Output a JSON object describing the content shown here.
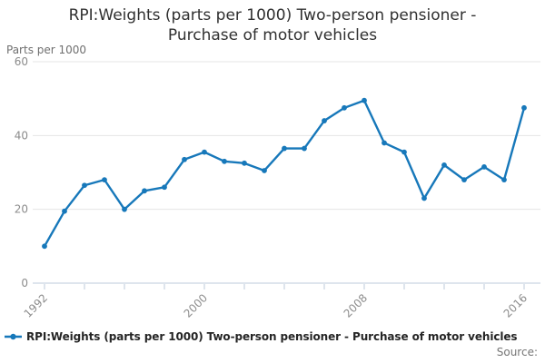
{
  "title": {
    "line1": "RPI:Weights (parts per 1000) Two-person pensioner -",
    "line2": "Purchase of motor vehicles"
  },
  "y_axis_unit_label": "Parts per 1000",
  "legend": {
    "label": "RPI:Weights (parts per 1000) Two-person pensioner - Purchase of motor vehicles"
  },
  "source_label": "Source:",
  "colors": {
    "line": "#1778ba",
    "grid": "#e4e4e4",
    "axis": "#bccbdb",
    "tick_label": "#8c8c8c",
    "title_text": "#303030",
    "legend_text": "#252525",
    "source_text": "#757575",
    "background": "#ffffff"
  },
  "chart_data": {
    "type": "line",
    "title": "RPI:Weights (parts per 1000) Two-person pensioner - Purchase of motor vehicles",
    "ylabel": "Parts per 1000",
    "xlabel": "",
    "ylim": [
      0,
      60
    ],
    "yticks": [
      0,
      20,
      40,
      60
    ],
    "xtick_step": 2,
    "xtick_labels_shown": [
      1992,
      2000,
      2008,
      2016
    ],
    "grid": true,
    "marker": "circle",
    "legend_position": "bottom-left",
    "x": [
      1992,
      1993,
      1994,
      1995,
      1996,
      1997,
      1998,
      1999,
      2000,
      2001,
      2002,
      2003,
      2004,
      2005,
      2006,
      2007,
      2008,
      2009,
      2010,
      2011,
      2012,
      2013,
      2014,
      2015,
      2016
    ],
    "series": [
      {
        "name": "RPI:Weights (parts per 1000) Two-person pensioner - Purchase of motor vehicles",
        "values": [
          10,
          19.5,
          26.5,
          28,
          20,
          25,
          26,
          33.5,
          35.5,
          33,
          32.5,
          30.5,
          36.5,
          36.5,
          44,
          47.5,
          49.5,
          38,
          35.5,
          23,
          32,
          28,
          31.5,
          28,
          47.5
        ]
      }
    ]
  }
}
